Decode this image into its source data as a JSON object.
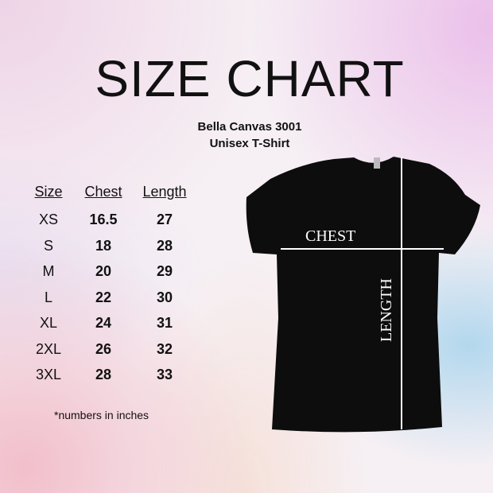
{
  "title": "SIZE CHART",
  "subtitle": "Bella Canvas 3001",
  "subtitle2": "Unisex T-Shirt",
  "table": {
    "headers": [
      "Size",
      "Chest",
      "Length"
    ],
    "rows": [
      [
        "XS",
        "16.5",
        "27"
      ],
      [
        "S",
        "18",
        "28"
      ],
      [
        "M",
        "20",
        "29"
      ],
      [
        "L",
        "22",
        "30"
      ],
      [
        "XL",
        "24",
        "31"
      ],
      [
        "2XL",
        "26",
        "32"
      ],
      [
        "3XL",
        "28",
        "33"
      ]
    ]
  },
  "note": "*numbers in inches",
  "diagram": {
    "chest_label": "CHEST",
    "length_label": "LENGTH",
    "shirt_color": "#0d0d0d"
  }
}
